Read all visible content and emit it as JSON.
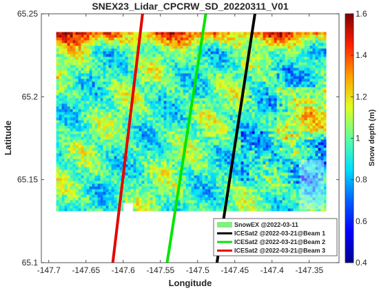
{
  "chart_data": {
    "type": "heatmap",
    "title": "SNEX23_Lidar_CPCRW_SD_20220311_V01",
    "xlabel": "Longitude",
    "ylabel": "Latitude",
    "xlim": [
      -147.71,
      -147.31
    ],
    "ylim": [
      65.1,
      65.25
    ],
    "xticks": [
      -147.7,
      -147.65,
      -147.6,
      -147.55,
      -147.5,
      -147.45,
      -147.4,
      -147.35
    ],
    "xtick_labels": [
      "-147.7",
      "-147.65",
      "-147.6",
      "-147.55",
      "-147.5",
      "-147.45",
      "-147.4",
      "-147.35"
    ],
    "yticks": [
      65.1,
      65.15,
      65.2,
      65.25
    ],
    "ytick_labels": [
      "65.1",
      "65.15",
      "65.2",
      "65.25"
    ],
    "colorbar": {
      "label": "Snow depth (m)",
      "range": [
        0.4,
        1.6
      ],
      "colormap": "jet",
      "ticks": [
        0.4,
        0.6,
        0.8,
        1.0,
        1.2,
        1.4,
        1.6
      ],
      "tick_labels": [
        "0.4",
        "0.6",
        "0.8",
        "1",
        "1.2",
        "1.4",
        "1.6"
      ]
    },
    "raster_extent": {
      "lon": [
        -147.69,
        -147.33
      ],
      "lat": [
        65.132,
        65.239
      ]
    },
    "series": [
      {
        "name": "ICESat2 @2022-03-21@Beam 1",
        "color": "#000000",
        "x": [
          -147.474,
          -147.423
        ],
        "y": [
          65.1,
          65.25
        ]
      },
      {
        "name": "ICESat2 @2022-03-21@Beam 2",
        "color": "#00e600",
        "x": [
          -147.541,
          -147.489
        ],
        "y": [
          65.1,
          65.25
        ]
      },
      {
        "name": "ICESat2 @2022-03-21@Beam 3",
        "color": "#e60000",
        "x": [
          -147.614,
          -147.574
        ],
        "y": [
          65.1,
          65.25
        ]
      }
    ],
    "legend": {
      "position": "bottom-right",
      "entries": [
        {
          "label": "SnowEX @2022-03-11",
          "color": "#80f080"
        },
        {
          "label": "ICESat2 @2022-03-21@Beam 1",
          "color": "#000000"
        },
        {
          "label": "ICESat2 @2022-03-21@Beam 2",
          "color": "#00e600"
        },
        {
          "label": "ICESat2 @2022-03-21@Beam 3",
          "color": "#e60000"
        }
      ]
    },
    "grid": false
  }
}
